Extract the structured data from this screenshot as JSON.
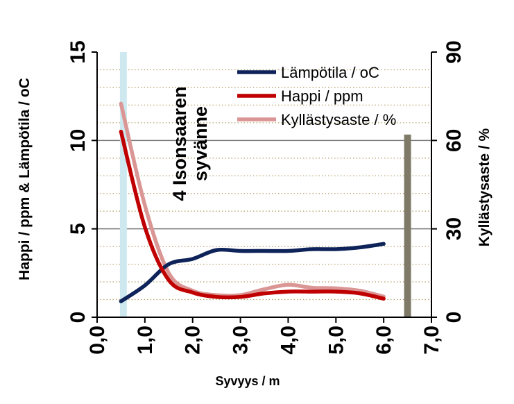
{
  "chart_data": {
    "type": "line",
    "xlabel": "Syvyys / m",
    "ylabel_left": "Happi / ppm & Lämpötila / oC",
    "ylabel_right": "Kyllästysaste / %",
    "xlim": [
      0,
      7
    ],
    "ylim_left": [
      0,
      15
    ],
    "ylim_right": [
      0,
      90
    ],
    "x_ticks": [
      "0,0",
      "1,0",
      "2,0",
      "3,0",
      "4,0",
      "5,0",
      "6,0",
      "7,0"
    ],
    "y_left_ticks": [
      "0",
      "5",
      "10",
      "15"
    ],
    "y_right_ticks": [
      "0",
      "30",
      "60",
      "90"
    ],
    "grid": "horizontal major solid, minor dotted",
    "legend_position": "top-right",
    "annotation": [
      "4 Isonsaaren",
      "syvänne"
    ],
    "series": [
      {
        "name": "Lämpötila / oC",
        "color": "#0d2359",
        "axis": "left",
        "x": [
          0.5,
          1.0,
          1.5,
          2.0,
          2.5,
          3.0,
          3.5,
          4.0,
          4.5,
          5.0,
          5.5,
          6.0
        ],
        "values": [
          0.9,
          1.8,
          3.0,
          3.3,
          3.8,
          3.75,
          3.75,
          3.75,
          3.85,
          3.85,
          3.95,
          4.15
        ]
      },
      {
        "name": "Happi / ppm",
        "color": "#c00000",
        "axis": "left",
        "x": [
          0.5,
          1.0,
          1.5,
          2.0,
          2.5,
          3.0,
          3.5,
          4.0,
          4.5,
          5.0,
          5.5,
          6.0
        ],
        "values": [
          10.5,
          5.1,
          2.1,
          1.4,
          1.15,
          1.15,
          1.35,
          1.45,
          1.45,
          1.45,
          1.35,
          1.05
        ]
      },
      {
        "name": "Kyllästysaste / %",
        "color": "#da9694",
        "axis": "right",
        "x": [
          0.5,
          1.0,
          1.5,
          2.0,
          2.5,
          3.0,
          3.5,
          4.0,
          4.5,
          5.0,
          5.5,
          6.0
        ],
        "values": [
          72.5,
          38,
          15,
          9,
          7.5,
          7.5,
          9.5,
          11,
          10,
          9.8,
          9.0,
          7.0
        ]
      }
    ],
    "vertical_markers": [
      {
        "x": 0.55,
        "color": "#cde9ef"
      },
      {
        "x": 6.5,
        "color": "#7f7a68",
        "top_right": 62
      }
    ]
  }
}
